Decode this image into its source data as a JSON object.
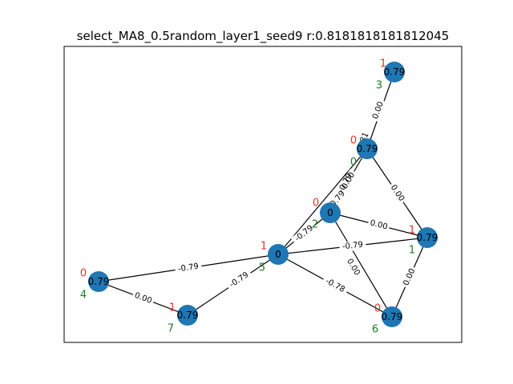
{
  "title": "select_MA8_0.5random_layer1_seed9  r:0.8181818181812045",
  "colors": {
    "node_fill": "#1f77b4",
    "edge": "#000000",
    "red_label": "#e8302a",
    "green_label": "#1f7a1f"
  },
  "nodes": [
    {
      "id": "n0",
      "value": "0.79",
      "red": "1",
      "green": "3"
    },
    {
      "id": "n1",
      "value": "0.79",
      "red": "0",
      "green": "0"
    },
    {
      "id": "n2",
      "value": "0",
      "red": "0",
      "green": "2"
    },
    {
      "id": "n3",
      "value": "0",
      "red": "1",
      "green": "5"
    },
    {
      "id": "n4",
      "value": "0.79",
      "red": "1",
      "green": "1"
    },
    {
      "id": "n5",
      "value": "0.79",
      "red": "0",
      "green": "4"
    },
    {
      "id": "n6",
      "value": "0.79",
      "red": "1",
      "green": "7"
    },
    {
      "id": "n7",
      "value": "0.79",
      "red": "0",
      "green": "6"
    }
  ],
  "edges": [
    {
      "from": "n0",
      "to": "n1",
      "label": "0.00"
    },
    {
      "from": "n1",
      "to": "n2",
      "label": "0.00"
    },
    {
      "from": "n1",
      "to": "n3",
      "label": "-0.79"
    },
    {
      "from": "n1",
      "to": "n4",
      "label": "0.00"
    },
    {
      "from": "n2",
      "to": "n4",
      "label": "0.00"
    },
    {
      "from": "n2",
      "to": "n7",
      "label": "0.00"
    },
    {
      "from": "n2",
      "to": "n3",
      "label": "-0.79"
    },
    {
      "from": "n3",
      "to": "n4",
      "label": "-0.79"
    },
    {
      "from": "n3",
      "to": "n7",
      "label": "-0.78"
    },
    {
      "from": "n3",
      "to": "n5",
      "label": "-0.79"
    },
    {
      "from": "n3",
      "to": "n6",
      "label": "-0.79"
    },
    {
      "from": "n5",
      "to": "n6",
      "label": "0.00"
    },
    {
      "from": "n4",
      "to": "n7",
      "label": "0.00"
    }
  ],
  "extra_fragments": [
    "81",
    "-0.79"
  ]
}
